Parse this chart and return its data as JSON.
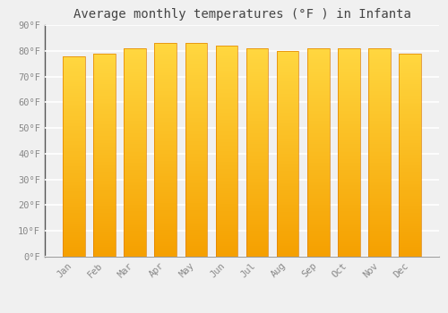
{
  "title": "Average monthly temperatures (°F ) in Infanta",
  "months": [
    "Jan",
    "Feb",
    "Mar",
    "Apr",
    "May",
    "Jun",
    "Jul",
    "Aug",
    "Sep",
    "Oct",
    "Nov",
    "Dec"
  ],
  "values": [
    78,
    79,
    81,
    83,
    83,
    82,
    81,
    80,
    81,
    81,
    81,
    79
  ],
  "ylim": [
    0,
    90
  ],
  "yticks": [
    0,
    10,
    20,
    30,
    40,
    50,
    60,
    70,
    80,
    90
  ],
  "ytick_labels": [
    "0°F",
    "10°F",
    "20°F",
    "30°F",
    "40°F",
    "50°F",
    "60°F",
    "70°F",
    "80°F",
    "90°F"
  ],
  "bar_color_top": "#FFD740",
  "bar_color_bottom": "#F5A000",
  "bar_edge_color": "#E08000",
  "background_color": "#f0f0f0",
  "plot_bg_color": "#f0f0f0",
  "grid_color": "#ffffff",
  "title_fontsize": 10,
  "tick_fontsize": 7.5,
  "tick_color": "#888888",
  "title_color": "#444444",
  "bar_width": 0.72
}
